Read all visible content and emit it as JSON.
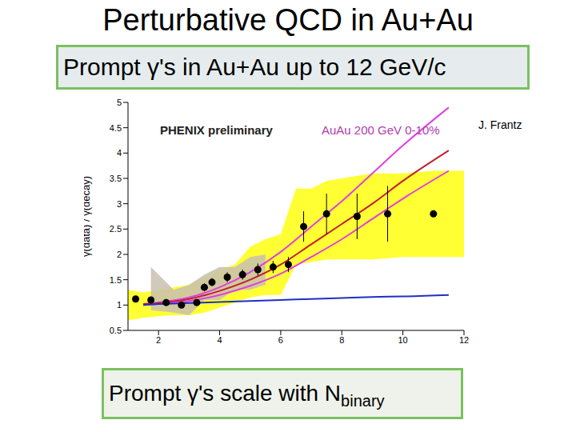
{
  "slide": {
    "title": "Perturbative QCD in Au+Au",
    "headline": "Prompt γ's in Au+Au up to 12 GeV/c",
    "footer": {
      "text": "Prompt γ's scale with N",
      "subscript": "binary"
    }
  },
  "chart_data": {
    "type": "line",
    "annotations": [
      "PHENIX preliminary",
      "AuAu 200 GeV 0-10%",
      "J. Frantz"
    ],
    "y_label": "γ(data) / γ(decay)",
    "xlim": [
      1,
      12
    ],
    "xticks": [
      2,
      4,
      6,
      8,
      10,
      12
    ],
    "ylim": [
      0.5,
      5
    ],
    "yticks": [
      0.5,
      1,
      1.5,
      2,
      2.5,
      3,
      3.5,
      4,
      4.5,
      5
    ],
    "grid": false,
    "series": [
      {
        "type": "band",
        "color": "#ffff33",
        "x": [
          1,
          1.5,
          2,
          2.5,
          3,
          3.5,
          4,
          4.5,
          5,
          5.5,
          6,
          6.5,
          7,
          7.5,
          8,
          9,
          10,
          11,
          12
        ],
        "lo": [
          0.7,
          0.75,
          0.78,
          0.8,
          0.8,
          0.85,
          0.95,
          1.05,
          1.15,
          1.2,
          1.2,
          1.8,
          1.85,
          1.9,
          1.9,
          1.9,
          1.95,
          1.95,
          1.95
        ],
        "hi": [
          1.3,
          1.25,
          1.3,
          1.35,
          1.4,
          1.55,
          1.7,
          1.8,
          2.15,
          2.3,
          2.4,
          3.3,
          3.3,
          3.45,
          3.5,
          3.6,
          3.6,
          3.65,
          3.65
        ]
      },
      {
        "type": "band",
        "color": "#c8c0b0",
        "x": [
          1.75,
          2.5,
          3,
          3.5,
          4,
          4.5,
          5,
          5.5
        ],
        "lo": [
          0.9,
          0.85,
          0.8,
          1.1,
          1.1,
          1.3,
          1.3,
          1.4
        ],
        "hi": [
          1.75,
          1.3,
          1.4,
          1.6,
          1.75,
          1.75,
          1.95,
          2.0
        ]
      },
      {
        "type": "line",
        "color": "#e040e0",
        "x": [
          1.5,
          2,
          3,
          4,
          5,
          6,
          7,
          8,
          9,
          10,
          11.5
        ],
        "values": [
          1.02,
          1.05,
          1.15,
          1.35,
          1.65,
          2.05,
          2.55,
          3.05,
          3.6,
          4.15,
          4.9
        ]
      },
      {
        "type": "line",
        "color": "#c02030",
        "x": [
          1.5,
          2,
          3,
          4,
          5,
          6,
          7,
          8,
          9,
          10,
          11.5
        ],
        "values": [
          1.02,
          1.04,
          1.12,
          1.28,
          1.5,
          1.8,
          2.2,
          2.6,
          3.0,
          3.45,
          4.05
        ]
      },
      {
        "type": "line",
        "color": "#e040e0",
        "x": [
          1.5,
          2,
          3,
          4,
          5,
          6,
          7,
          8,
          9,
          10,
          11.5
        ],
        "values": [
          1.0,
          1.02,
          1.08,
          1.2,
          1.38,
          1.62,
          1.95,
          2.3,
          2.7,
          3.1,
          3.65
        ]
      },
      {
        "type": "line",
        "color": "#2030c0",
        "x": [
          1.5,
          2,
          3,
          4,
          5,
          6,
          7,
          8,
          9,
          10,
          11.5
        ],
        "values": [
          1.0,
          1.02,
          1.04,
          1.06,
          1.08,
          1.1,
          1.12,
          1.14,
          1.16,
          1.17,
          1.2
        ]
      },
      {
        "type": "scatter",
        "color": "#000000",
        "marker": "circle",
        "x": [
          1.25,
          1.75,
          2.25,
          2.75,
          3.25,
          3.5,
          3.75,
          4.25,
          4.75,
          5.25,
          5.75,
          6.25,
          6.75,
          7.5,
          8.5,
          9.5,
          11.0
        ],
        "values": [
          1.12,
          1.1,
          1.05,
          1.0,
          1.05,
          1.35,
          1.45,
          1.55,
          1.6,
          1.7,
          1.75,
          1.8,
          2.55,
          2.8,
          2.75,
          2.8,
          2.8
        ],
        "errors": [
          0.05,
          0.05,
          0.05,
          0.06,
          0.06,
          0.08,
          0.08,
          0.1,
          0.1,
          0.12,
          0.12,
          0.15,
          0.3,
          0.4,
          0.45,
          0.55,
          0
        ]
      }
    ]
  }
}
